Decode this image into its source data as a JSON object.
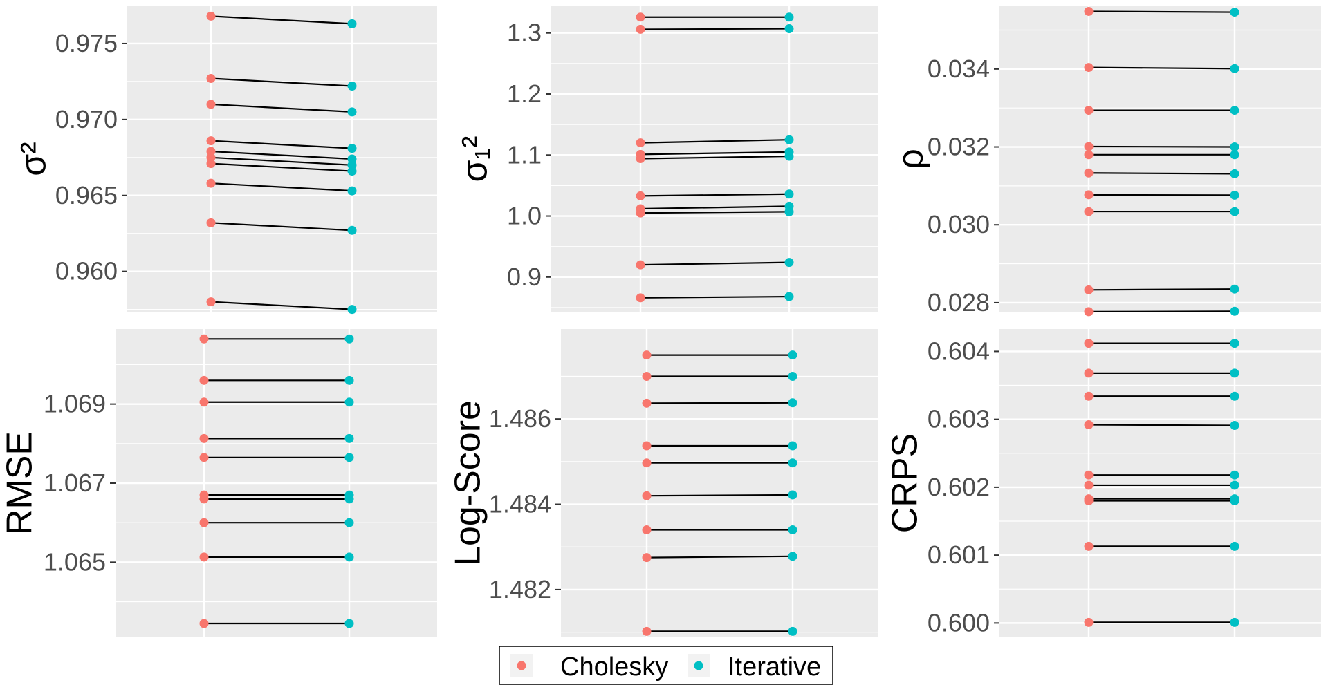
{
  "colors": {
    "cholesky": "#F8766D",
    "iterative": "#00BFC4",
    "panel_bg": "#EBEBEB",
    "grid": "#FFFFFF",
    "line": "#000000"
  },
  "legend": {
    "items": [
      {
        "label": "Cholesky",
        "color": "#F8766D"
      },
      {
        "label": "Iterative",
        "color": "#00BFC4"
      }
    ]
  },
  "chart_data": [
    {
      "id": "sigma2",
      "type": "line",
      "ylabel": "σ²",
      "ylim": [
        0.9573,
        0.9775
      ],
      "yticks": [
        0.96,
        0.965,
        0.97,
        0.975
      ],
      "tick_labels": [
        "0.960",
        "0.965",
        "0.970",
        "0.975"
      ],
      "categories": [
        "Cholesky",
        "Iterative"
      ],
      "pairs": [
        [
          0.9768,
          0.9763
        ],
        [
          0.9727,
          0.9722
        ],
        [
          0.971,
          0.9705
        ],
        [
          0.9686,
          0.9681
        ],
        [
          0.9679,
          0.9674
        ],
        [
          0.9675,
          0.967
        ],
        [
          0.9671,
          0.9666
        ],
        [
          0.9658,
          0.9653
        ],
        [
          0.9632,
          0.9627
        ],
        [
          0.958,
          0.9575
        ]
      ]
    },
    {
      "id": "sigma1sq",
      "type": "line",
      "ylabel": "σ₁²",
      "ylim": [
        0.842,
        1.345
      ],
      "yticks": [
        0.9,
        1.0,
        1.1,
        1.2,
        1.3
      ],
      "tick_labels": [
        "0.9",
        "1.0",
        "1.1",
        "1.2",
        "1.3"
      ],
      "categories": [
        "Cholesky",
        "Iterative"
      ],
      "pairs": [
        [
          1.326,
          1.326
        ],
        [
          1.306,
          1.307
        ],
        [
          1.12,
          1.125
        ],
        [
          1.101,
          1.105
        ],
        [
          1.094,
          1.098
        ],
        [
          1.033,
          1.036
        ],
        [
          1.012,
          1.016
        ],
        [
          1.005,
          1.007
        ],
        [
          0.92,
          0.924
        ],
        [
          0.866,
          0.868
        ]
      ]
    },
    {
      "id": "rho",
      "type": "line",
      "ylabel": "ρ",
      "ylim": [
        0.02775,
        0.03563
      ],
      "yticks": [
        0.028,
        0.03,
        0.032,
        0.034
      ],
      "tick_labels": [
        "0.028",
        "0.030",
        "0.032",
        "0.034"
      ],
      "categories": [
        "Cholesky",
        "Iterative"
      ],
      "pairs": [
        [
          0.03548,
          0.03546
        ],
        [
          0.03404,
          0.03401
        ],
        [
          0.03294,
          0.03294
        ],
        [
          0.03201,
          0.032
        ],
        [
          0.0318,
          0.0318
        ],
        [
          0.03133,
          0.03131
        ],
        [
          0.03077,
          0.03076
        ],
        [
          0.03034,
          0.03034
        ],
        [
          0.02833,
          0.02835
        ],
        [
          0.02777,
          0.02778
        ]
      ]
    },
    {
      "id": "rmse",
      "type": "line",
      "ylabel": "RMSE",
      "ylim": [
        1.0631,
        1.0709
      ],
      "yticks": [
        1.065,
        1.067,
        1.069
      ],
      "tick_labels": [
        "1.065",
        "1.067",
        "1.069"
      ],
      "categories": [
        "Cholesky",
        "Iterative"
      ],
      "pairs": [
        [
          1.07065,
          1.07065
        ],
        [
          1.0696,
          1.0696
        ],
        [
          1.06905,
          1.06905
        ],
        [
          1.06813,
          1.06813
        ],
        [
          1.06765,
          1.06765
        ],
        [
          1.0667,
          1.0667
        ],
        [
          1.0666,
          1.0666
        ],
        [
          1.066,
          1.066
        ],
        [
          1.06513,
          1.06513
        ],
        [
          1.06345,
          1.06345
        ]
      ]
    },
    {
      "id": "logscore",
      "type": "line",
      "ylabel": "Log-Score",
      "ylim": [
        1.48088,
        1.48811
      ],
      "yticks": [
        1.482,
        1.484,
        1.486
      ],
      "tick_labels": [
        "1.482",
        "1.484",
        "1.486"
      ],
      "categories": [
        "Cholesky",
        "Iterative"
      ],
      "pairs": [
        [
          1.4875,
          1.4875
        ],
        [
          1.487,
          1.487
        ],
        [
          1.48637,
          1.48638
        ],
        [
          1.48537,
          1.48537
        ],
        [
          1.48497,
          1.48497
        ],
        [
          1.4842,
          1.48422
        ],
        [
          1.4834,
          1.4834
        ],
        [
          1.48275,
          1.48278
        ],
        [
          1.48102,
          1.48102
        ]
      ]
    },
    {
      "id": "crps",
      "type": "line",
      "ylabel": "CRPS",
      "ylim": [
        0.59979,
        0.60433
      ],
      "yticks": [
        0.6,
        0.601,
        0.602,
        0.603,
        0.604
      ],
      "tick_labels": [
        "0.600",
        "0.601",
        "0.602",
        "0.603",
        "0.604"
      ],
      "categories": [
        "Cholesky",
        "Iterative"
      ],
      "pairs": [
        [
          0.60412,
          0.60412
        ],
        [
          0.60368,
          0.60368
        ],
        [
          0.60334,
          0.60334
        ],
        [
          0.60292,
          0.60291
        ],
        [
          0.60218,
          0.60218
        ],
        [
          0.60203,
          0.60203
        ],
        [
          0.60183,
          0.60183
        ],
        [
          0.6018,
          0.6018
        ],
        [
          0.60113,
          0.60113
        ],
        [
          0.60001,
          0.60001
        ]
      ]
    }
  ]
}
